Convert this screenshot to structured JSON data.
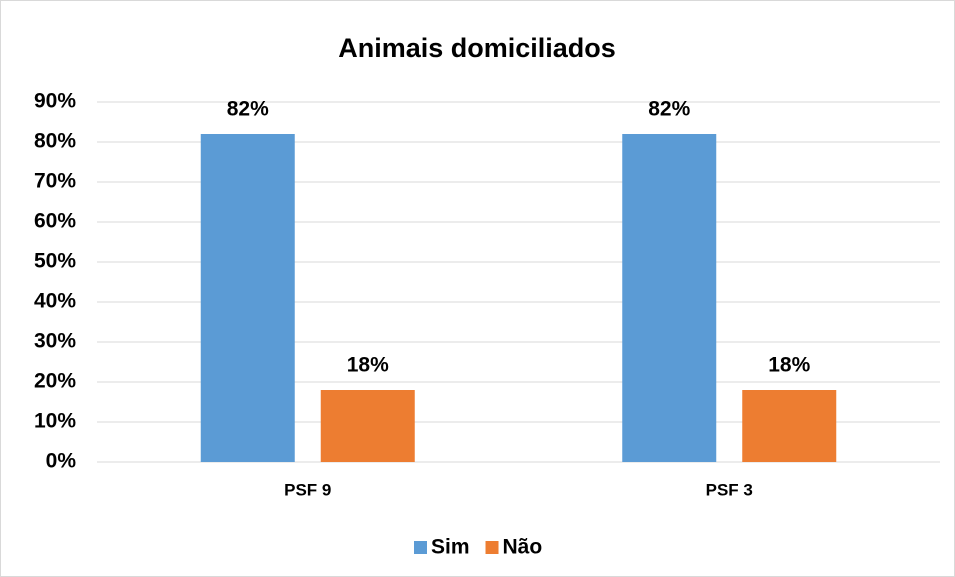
{
  "chart_data": {
    "type": "bar",
    "title": "Animais domiciliados",
    "categories": [
      "PSF 9",
      "PSF 3"
    ],
    "series": [
      {
        "name": "Sim",
        "color": "#5b9bd5",
        "values": [
          82,
          82
        ],
        "value_labels": [
          "82%",
          "82%"
        ]
      },
      {
        "name": "Não",
        "color": "#ed7d31",
        "values": [
          18,
          18
        ],
        "value_labels": [
          "18%",
          "18%"
        ]
      }
    ],
    "ylim": [
      0,
      90
    ],
    "yticks": [
      {
        "value": 0,
        "label": "0%"
      },
      {
        "value": 10,
        "label": "10%"
      },
      {
        "value": 20,
        "label": "20%"
      },
      {
        "value": 30,
        "label": "30%"
      },
      {
        "value": 40,
        "label": "40%"
      },
      {
        "value": 50,
        "label": "50%"
      },
      {
        "value": 60,
        "label": "60%"
      },
      {
        "value": 70,
        "label": "70%"
      },
      {
        "value": 80,
        "label": "80%"
      },
      {
        "value": 90,
        "label": "90%"
      }
    ],
    "grid": true,
    "legend": "bottom"
  }
}
